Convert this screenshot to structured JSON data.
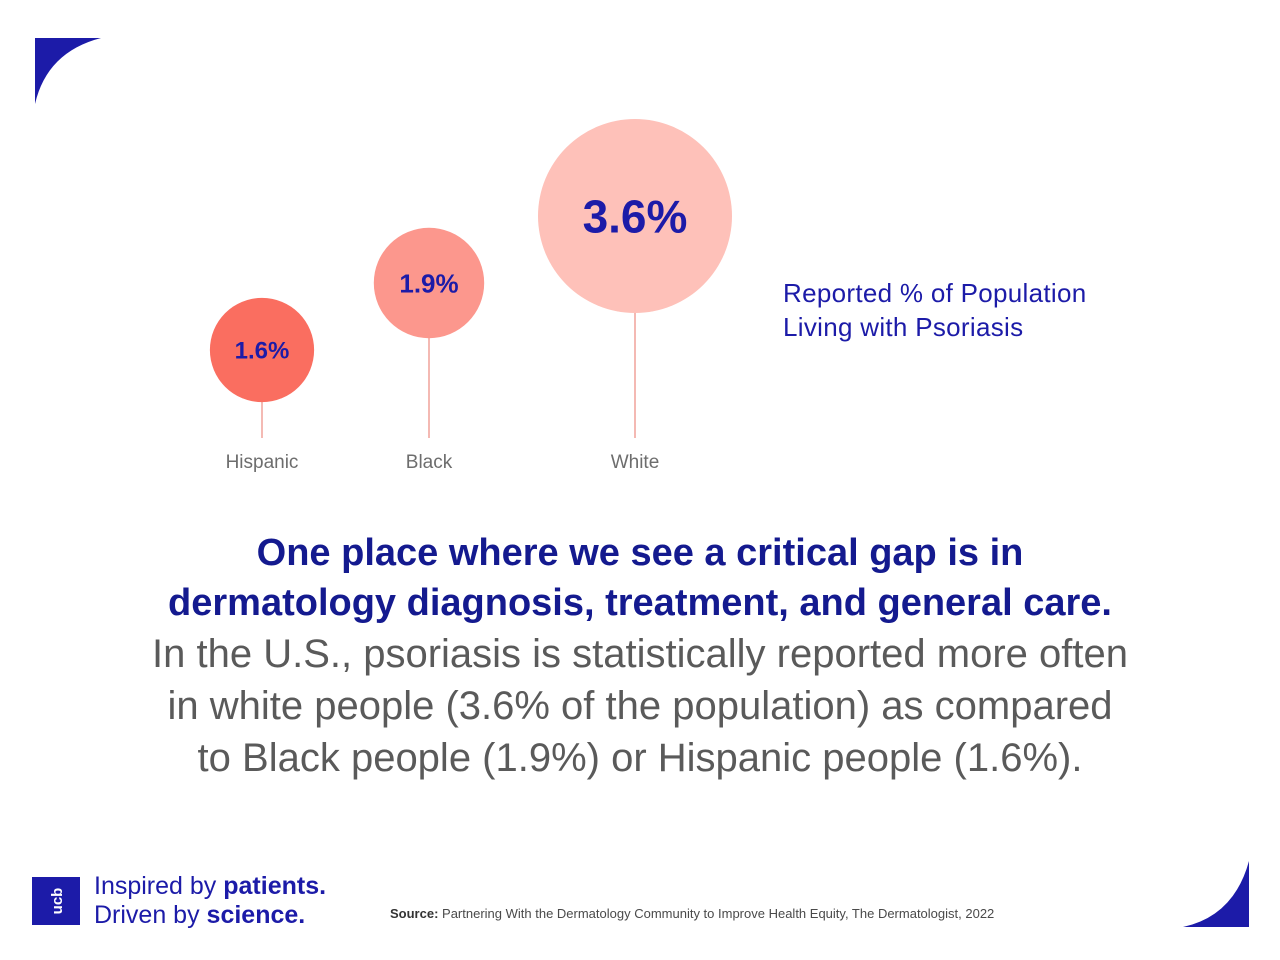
{
  "chart_data": {
    "type": "bubble",
    "categories": [
      "Hispanic",
      "Black",
      "White"
    ],
    "values": [
      1.6,
      1.9,
      3.6
    ],
    "value_labels": [
      "1.6%",
      "1.9%",
      "3.6%"
    ],
    "legend": [
      "Reported % of Population",
      "Living with Psoriasis"
    ],
    "colors": [
      "#fa6e60",
      "#fc978d",
      "#fec1b9"
    ],
    "label_color": "#1c1ba8",
    "stem_color": "#f0a29a",
    "category_label_color": "#6d6d6d"
  },
  "headline": {
    "line1": "One place where we see a critical gap is in",
    "line2": "dermatology diagnosis, treatment, and general care."
  },
  "body": {
    "line1": "In the U.S., psoriasis is statistically reported more often",
    "line2": "in white people (3.6% of the population) as compared",
    "line3": "to Black people (1.9%) or Hispanic people (1.6%)."
  },
  "brand": {
    "logo_text": "ucb",
    "tagline1_a": "Inspired by ",
    "tagline1_b": "patients.",
    "tagline2_a": "Driven by ",
    "tagline2_b": "science."
  },
  "source": {
    "label": "Source:",
    "text": " Partnering With the Dermatology Community to Improve Health Equity, The Dermatologist, 2022"
  },
  "colors": {
    "brand_blue": "#1c1ba8",
    "headline_blue": "#141a8f",
    "body_gray": "#5a5a5a"
  }
}
